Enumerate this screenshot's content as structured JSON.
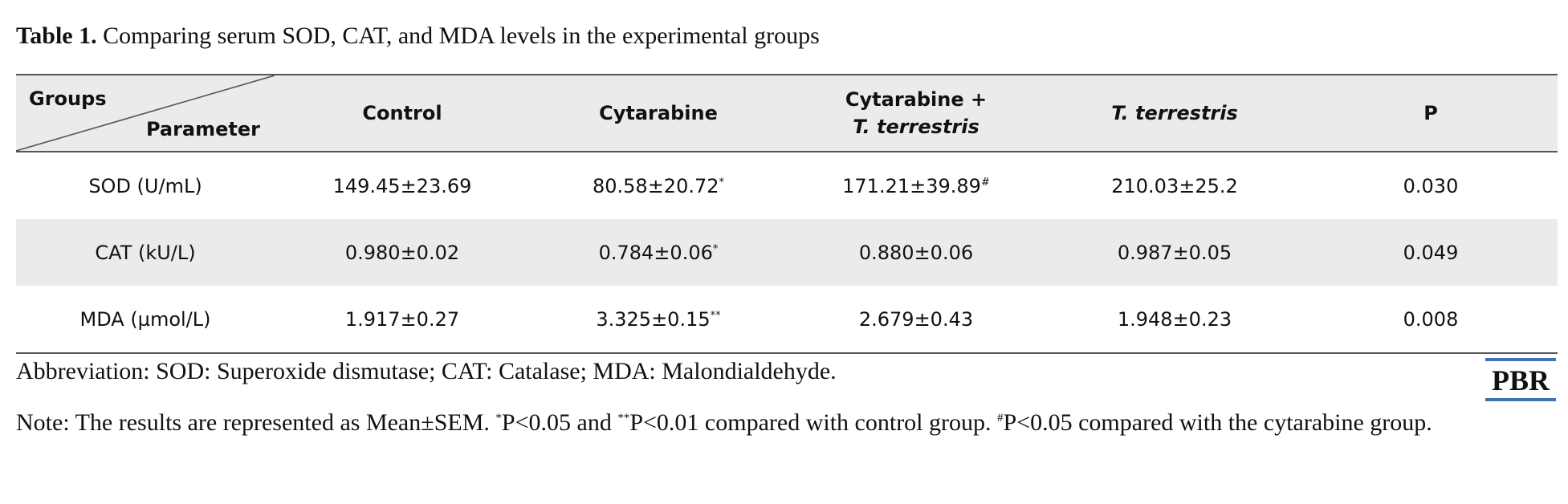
{
  "caption": {
    "label": "Table 1.",
    "text": " Comparing serum SOD, CAT, and MDA levels in the experimental groups"
  },
  "table": {
    "corner": {
      "top_left": "Groups",
      "bottom_right": "Parameter"
    },
    "headers": {
      "control": "Control",
      "cytarabine": "Cytarabine",
      "combo_line1": "Cytarabine +",
      "combo_line2": "T. terrestris",
      "tt": "T. terrestris",
      "p": "P"
    },
    "rows": [
      {
        "param": "SOD (U/mL)",
        "control": "149.45±23.69",
        "cytarabine": "80.58±20.72",
        "cytarabine_mark": "*",
        "combo": "171.21±39.89",
        "combo_mark": "#",
        "tt": "210.03±25.2",
        "p": "0.030"
      },
      {
        "param": "CAT (kU/L)",
        "control": "0.980±0.02",
        "cytarabine": "0.784±0.06",
        "cytarabine_mark": "*",
        "combo": "0.880±0.06",
        "combo_mark": "",
        "tt": "0.987±0.05",
        "p": "0.049"
      },
      {
        "param": "MDA (µmol/L)",
        "control": "1.917±0.27",
        "cytarabine": "3.325±0.15",
        "cytarabine_mark": "**",
        "combo": "2.679±0.43",
        "combo_mark": "",
        "tt": "1.948±0.23",
        "p": "0.008"
      }
    ]
  },
  "abbreviation": "Abbreviation: SOD: Superoxide dismutase; CAT: Catalase; MDA: Malondialdehyde.",
  "note": {
    "part1": "Note: The results are represented as Mean±SEM. ",
    "mark1": "*",
    "part2": "P<0.05 and ",
    "mark2": "**",
    "part3": "P<0.01 compared with control group. ",
    "mark3": "#",
    "part4": "P<0.05 compared with the cytarabine group."
  },
  "logo": {
    "text": "PBR",
    "color": "#3f72b5"
  }
}
